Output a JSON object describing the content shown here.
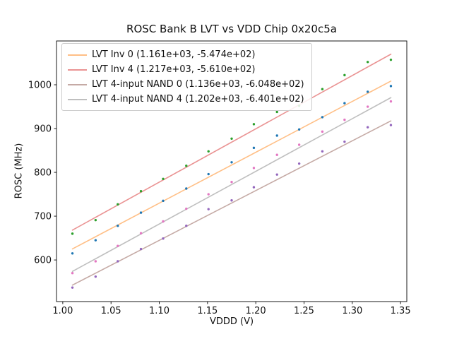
{
  "figure": {
    "background": "#ffffff"
  },
  "chart_data": {
    "type": "scatter",
    "title": "ROSC Bank B LVT vs VDD Chip 0x20c5a",
    "xlabel": "VDDD (V)",
    "ylabel": "ROSC (MHz)",
    "xlim": [
      0.9935,
      1.3565
    ],
    "ylim": [
      505,
      1100
    ],
    "xtick_values": [
      1.0,
      1.05,
      1.1,
      1.15,
      1.2,
      1.25,
      1.3,
      1.35
    ],
    "xtick_labels": [
      "1.00",
      "1.05",
      "1.10",
      "1.15",
      "1.20",
      "1.25",
      "1.30",
      "1.35"
    ],
    "ytick_values": [
      600,
      700,
      800,
      900,
      1000
    ],
    "ytick_labels": [
      "600",
      "700",
      "800",
      "900",
      "1000"
    ],
    "grid": false,
    "legend_position": "upper left",
    "x": [
      1.01,
      1.034,
      1.057,
      1.081,
      1.104,
      1.128,
      1.151,
      1.175,
      1.198,
      1.222,
      1.245,
      1.269,
      1.292,
      1.316,
      1.34
    ],
    "series": [
      {
        "label": "LVT Inv 0 (1.161e+03, -5.474e+02)",
        "fit_slope": 1161.0,
        "fit_intercept": -547.4,
        "line_color": "#ffbf86",
        "dot_color": "#1f77b4",
        "values": [
          615,
          645,
          678,
          708,
          735,
          763,
          796,
          823,
          856,
          884,
          898,
          926,
          958,
          984,
          997
        ]
      },
      {
        "label": "LVT Inv 4 (1.217e+03, -5.610e+02)",
        "fit_slope": 1217.0,
        "fit_intercept": -561.0,
        "line_color": "#ea9393",
        "dot_color": "#2ca02c",
        "values": [
          660,
          691,
          727,
          757,
          785,
          815,
          848,
          877,
          910,
          938,
          952,
          990,
          1022,
          1052,
          1057
        ]
      },
      {
        "label": "LVT 4-input NAND 0 (1.136e+03, -6.048e+02)",
        "fit_slope": 1136.0,
        "fit_intercept": -604.8,
        "line_color": "#c5aaa5",
        "dot_color": "#9467bd",
        "values": [
          537,
          562,
          597,
          625,
          649,
          678,
          716,
          736,
          766,
          795,
          820,
          848,
          870,
          903,
          908
        ]
      },
      {
        "label": "LVT 4-input NAND 4 (1.202e+03, -6.401e+02)",
        "fit_slope": 1202.0,
        "fit_intercept": -640.1,
        "line_color": "#bfbfbf",
        "dot_color": "#e377c2",
        "values": [
          570,
          597,
          632,
          661,
          688,
          717,
          750,
          778,
          810,
          840,
          863,
          893,
          920,
          950,
          962
        ]
      }
    ]
  }
}
